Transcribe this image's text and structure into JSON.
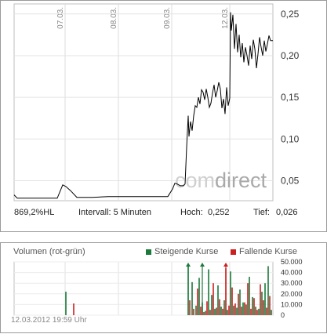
{
  "price_panel": {
    "date_labels": [
      "07.03.",
      "08.03.",
      "09.03.",
      "12.03."
    ],
    "watermark_light": "com",
    "watermark_dark": "direct",
    "info": {
      "change": "869,2%HL",
      "interval": "Intervall: 5 Minuten",
      "high_label": "Hoch:",
      "high_value": "0,252",
      "low_label": "Tief:",
      "low_value": "0,026"
    }
  },
  "volume_panel": {
    "title": "Volumen (rot-grün)",
    "legend_rising": "Steigende Kurse",
    "legend_falling": "Fallende Kurse",
    "timestamp": "12.03.2012 19:59 Uhr",
    "colors": {
      "rising": "#1a7a3a",
      "falling": "#cc1f1f"
    }
  },
  "chart_data": [
    {
      "type": "line",
      "y_tick_labels": [
        "0,05",
        "0,10",
        "0,15",
        "0,20",
        "0,25"
      ],
      "y_ticks": [
        0.05,
        0.1,
        0.15,
        0.2,
        0.25
      ],
      "ylim": [
        0.026,
        0.262
      ],
      "x_day_labels": [
        "07.03.",
        "08.03.",
        "09.03.",
        "12.03."
      ],
      "x_range": [
        0,
        330
      ],
      "grid": true,
      "color": "#000000",
      "points": [
        [
          0,
          0.033
        ],
        [
          4,
          0.029
        ],
        [
          25,
          0.029
        ],
        [
          45,
          0.029
        ],
        [
          55,
          0.029
        ],
        [
          62,
          0.045
        ],
        [
          66,
          0.043
        ],
        [
          72,
          0.038
        ],
        [
          80,
          0.03
        ],
        [
          100,
          0.03
        ],
        [
          120,
          0.031
        ],
        [
          150,
          0.031
        ],
        [
          180,
          0.031
        ],
        [
          196,
          0.031
        ],
        [
          202,
          0.04
        ],
        [
          205,
          0.047
        ],
        [
          208,
          0.046
        ],
        [
          212,
          0.044
        ],
        [
          216,
          0.044
        ],
        [
          218,
          0.046
        ],
        [
          220,
          0.09
        ],
        [
          222,
          0.128
        ],
        [
          223,
          0.103
        ],
        [
          225,
          0.121
        ],
        [
          227,
          0.11
        ],
        [
          229,
          0.128
        ],
        [
          231,
          0.14
        ],
        [
          233,
          0.138
        ],
        [
          235,
          0.15
        ],
        [
          237,
          0.142
        ],
        [
          239,
          0.159
        ],
        [
          241,
          0.156
        ],
        [
          243,
          0.147
        ],
        [
          245,
          0.16
        ],
        [
          247,
          0.15
        ],
        [
          249,
          0.138
        ],
        [
          251,
          0.143
        ],
        [
          253,
          0.155
        ],
        [
          255,
          0.165
        ],
        [
          257,
          0.15
        ],
        [
          259,
          0.158
        ],
        [
          261,
          0.168
        ],
        [
          263,
          0.16
        ],
        [
          265,
          0.137
        ],
        [
          267,
          0.148
        ],
        [
          269,
          0.13
        ],
        [
          271,
          0.162
        ],
        [
          273,
          0.14
        ],
        [
          275,
          0.149
        ],
        [
          276,
          0.252
        ],
        [
          277,
          0.23
        ],
        [
          279,
          0.249
        ],
        [
          281,
          0.208
        ],
        [
          283,
          0.238
        ],
        [
          285,
          0.204
        ],
        [
          287,
          0.225
        ],
        [
          289,
          0.198
        ],
        [
          291,
          0.215
        ],
        [
          293,
          0.192
        ],
        [
          295,
          0.21
        ],
        [
          297,
          0.2
        ],
        [
          299,
          0.188
        ],
        [
          301,
          0.212
        ],
        [
          303,
          0.196
        ],
        [
          305,
          0.219
        ],
        [
          307,
          0.208
        ],
        [
          309,
          0.185
        ],
        [
          311,
          0.202
        ],
        [
          313,
          0.222
        ],
        [
          315,
          0.21
        ],
        [
          317,
          0.2
        ],
        [
          319,
          0.218
        ],
        [
          321,
          0.205
        ],
        [
          323,
          0.214
        ],
        [
          325,
          0.224
        ],
        [
          327,
          0.218
        ],
        [
          330,
          0.218
        ]
      ]
    },
    {
      "type": "bar",
      "y_tick_labels": [
        "0",
        "10.000",
        "20.000",
        "30.000",
        "40.000",
        "50.000"
      ],
      "ylim": [
        0,
        50000
      ],
      "x_range": [
        0,
        330
      ],
      "series": [
        {
          "name": "Steigende Kurse",
          "color": "#1a7a3a",
          "x": [
            66,
            222,
            227,
            232,
            236,
            240,
            244,
            248,
            252,
            256,
            260,
            264,
            268,
            272,
            276,
            280,
            284,
            288,
            292,
            296,
            300,
            304,
            308,
            312,
            316,
            320,
            324,
            328
          ],
          "values": [
            22000,
            46000,
            31000,
            9000,
            35000,
            12000,
            4000,
            43000,
            19000,
            6000,
            28000,
            8000,
            14000,
            5000,
            41000,
            9000,
            7000,
            24000,
            12000,
            10000,
            36000,
            17000,
            8000,
            6000,
            22000,
            30000,
            46000,
            5000
          ]
        },
        {
          "name": "Fallende Kurse",
          "color": "#cc1f1f",
          "x": [
            76,
            224,
            229,
            234,
            238,
            242,
            246,
            250,
            254,
            258,
            262,
            266,
            270,
            274,
            278,
            282,
            286,
            290,
            294,
            298,
            302,
            306,
            310,
            314,
            318,
            322,
            326
          ],
          "values": [
            11000,
            14000,
            6000,
            25000,
            8000,
            3000,
            13000,
            5000,
            30000,
            7000,
            15000,
            6000,
            44000,
            9000,
            26000,
            11000,
            20000,
            8000,
            12000,
            30000,
            6000,
            16000,
            5000,
            29000,
            14000,
            7000,
            18000
          ]
        }
      ],
      "markers": [
        {
          "x": 222,
          "color": "#1a7a3a"
        },
        {
          "x": 240,
          "color": "#1a7a3a"
        },
        {
          "x": 270,
          "color": "#cc1f1f"
        }
      ]
    }
  ]
}
